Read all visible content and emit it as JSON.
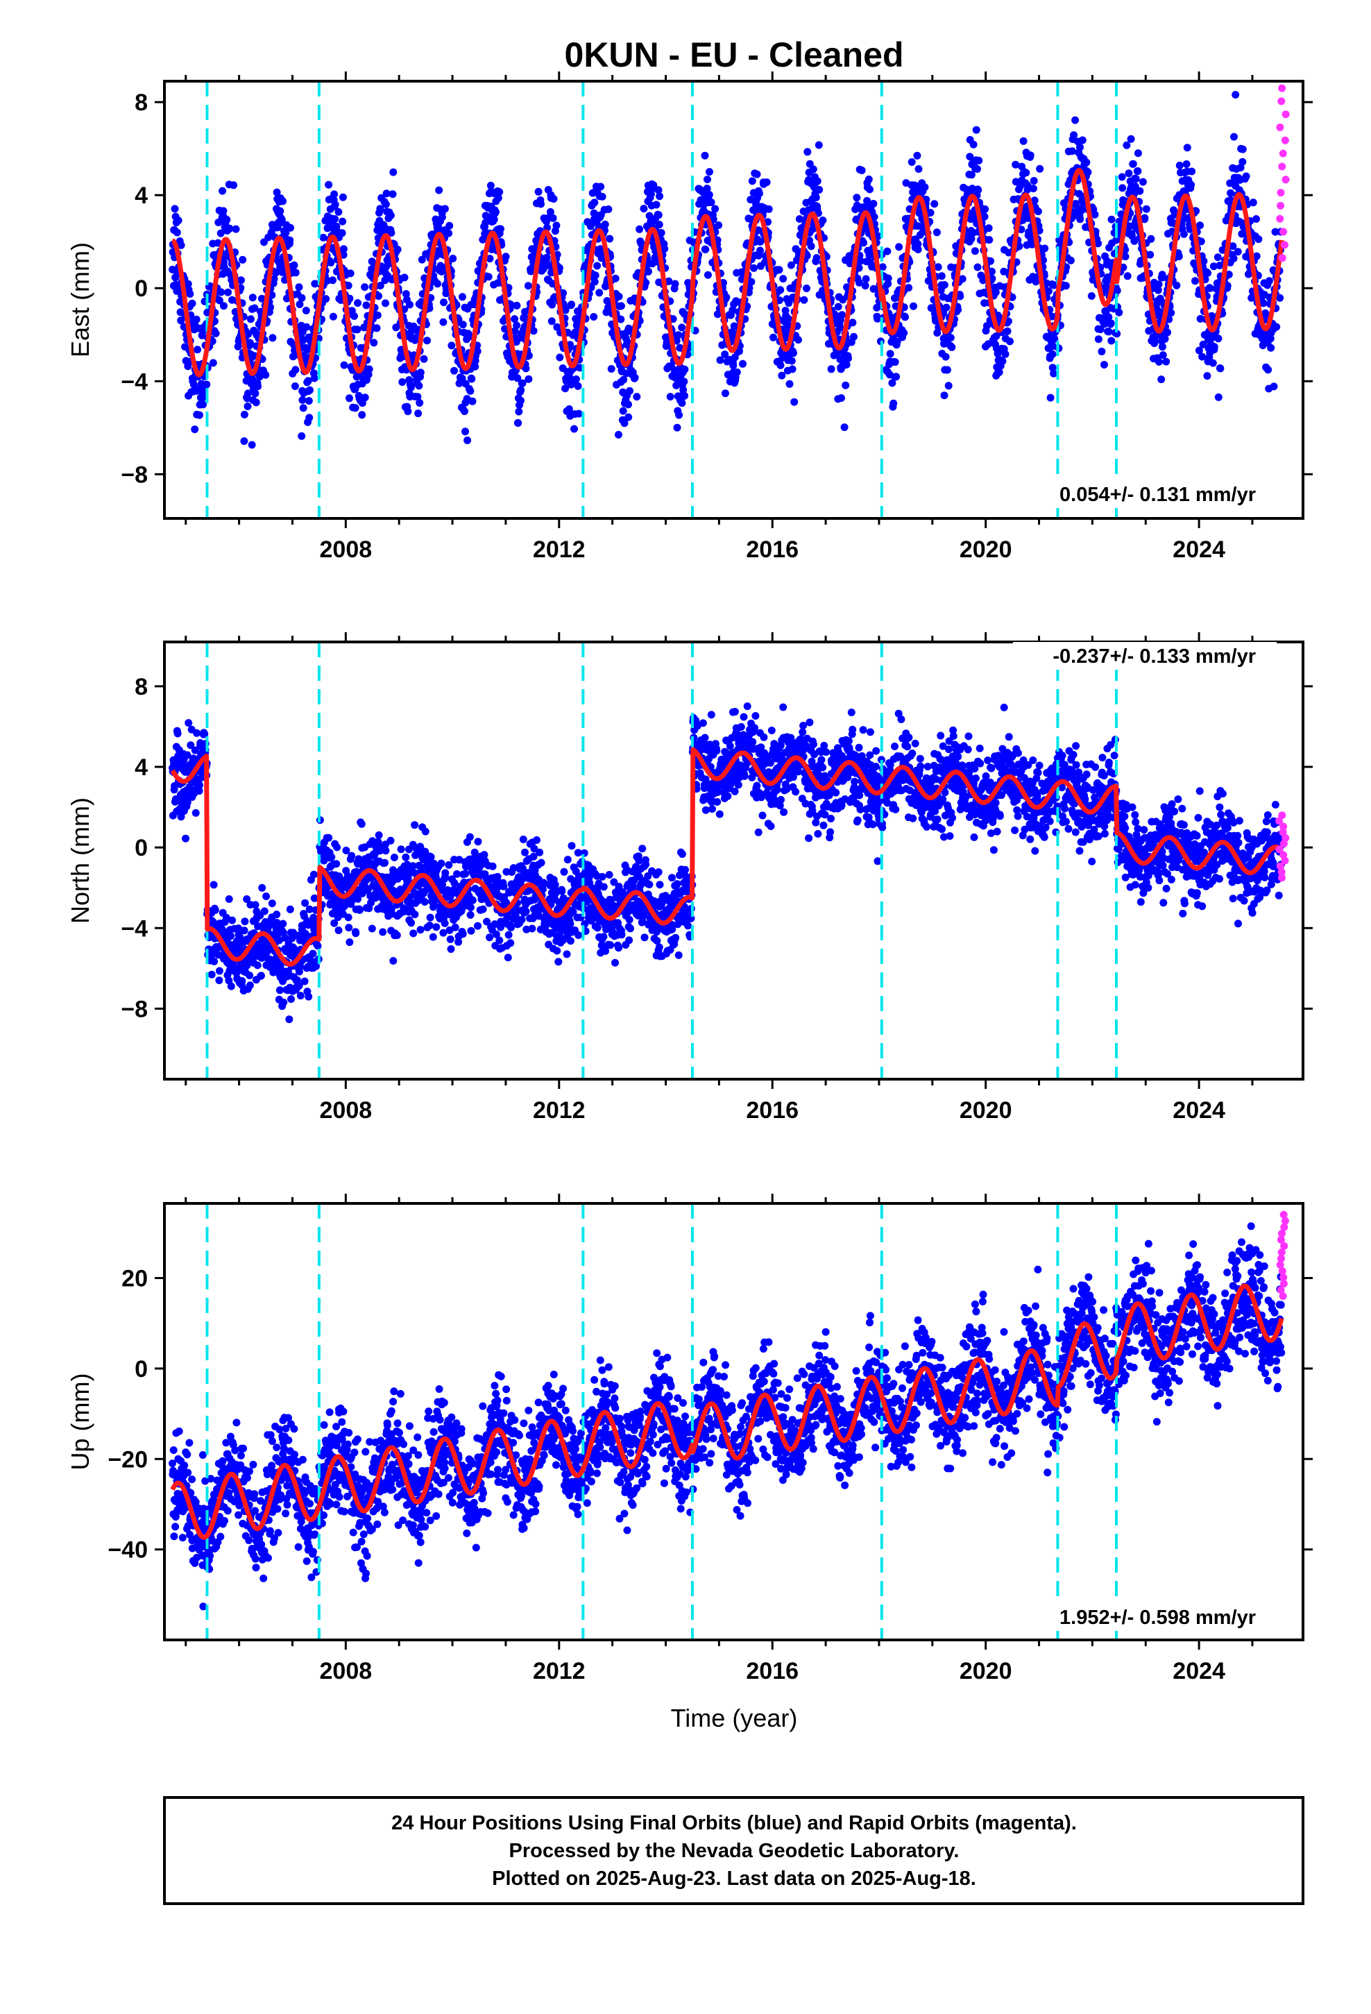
{
  "title": "0KUN  - EU - Cleaned",
  "xlabel": "Time (year)",
  "footer": [
    "24 Hour Positions Using Final Orbits (blue) and Rapid Orbits (magenta).",
    "Processed by the Nevada Geodetic Laboratory.",
    "Plotted on 2025-Aug-23. Last data on 2025-Aug-18."
  ],
  "colors": {
    "final_orbits": "#0000ff",
    "rapid_orbits": "#ff33ff",
    "model": "#ff1a1a",
    "events": "#00e5ee"
  },
  "chart_data": [
    {
      "type": "scatter",
      "name": "east",
      "ylabel": "East (mm)",
      "rate_label": "0.054+/- 0.131 mm/yr",
      "xlim": [
        2004.6,
        2025.95
      ],
      "ylim": [
        -9.9,
        8.9
      ],
      "xticks": [
        2008,
        2012,
        2016,
        2020,
        2024
      ],
      "yticks": [
        8,
        4,
        0,
        -4,
        -8
      ],
      "xtick_labels": [
        "2008",
        "2012",
        "2016",
        "2020",
        "2024"
      ],
      "ytick_labels": [
        "8",
        "4",
        "0",
        "−4",
        "−8"
      ],
      "event_lines": [
        2005.4,
        2007.5,
        2012.45,
        2014.5,
        2018.05,
        2021.35,
        2022.45
      ],
      "model": {
        "amp": 2.9,
        "phase_year": 0.5,
        "offset": [
          [
            2004.6,
            -0.3
          ],
          [
            2014.5,
            0.2
          ],
          [
            2018.05,
            0.8
          ],
          [
            2021.35,
            1.8
          ],
          [
            2022.45,
            0.6
          ]
        ],
        "rate": 0.054
      },
      "scatter": {
        "sigma": 1.2,
        "start": 2004.75,
        "end": 2025.55,
        "count": 3600
      },
      "rapid": {
        "x_start": 2025.5,
        "x_end": 2025.63,
        "y_min": 1.3,
        "y_max": 8.6,
        "count": 14
      }
    },
    {
      "type": "scatter",
      "name": "north",
      "ylabel": "North (mm)",
      "rate_label": "-0.237+/- 0.133 mm/yr",
      "xlim": [
        2004.6,
        2025.95
      ],
      "ylim": [
        -11.5,
        10.2
      ],
      "xticks": [
        2008,
        2012,
        2016,
        2020,
        2024
      ],
      "yticks": [
        8,
        4,
        0,
        -4,
        -8
      ],
      "xtick_labels": [
        "2008",
        "2012",
        "2016",
        "2020",
        "2024"
      ],
      "ytick_labels": [
        "8",
        "4",
        "0",
        "−4",
        "−8"
      ],
      "event_lines": [
        2005.4,
        2007.5,
        2012.45,
        2014.5,
        2018.05,
        2021.35,
        2022.45
      ],
      "model": {
        "amp": 0.7,
        "phase_year": 0.2,
        "offset": [
          [
            2004.6,
            1.6
          ],
          [
            2005.4,
            -7.0
          ],
          [
            2007.5,
            -3.4
          ],
          [
            2012.45,
            -3.3
          ],
          [
            2014.5,
            4.1
          ],
          [
            2022.45,
            1.8
          ]
        ],
        "rate": -0.237
      },
      "scatter": {
        "sigma": 1.0,
        "start": 2004.75,
        "end": 2025.55,
        "count": 3600
      },
      "rapid": {
        "x_start": 2025.5,
        "x_end": 2025.63,
        "y_min": -1.5,
        "y_max": 1.6,
        "count": 12
      }
    },
    {
      "type": "scatter",
      "name": "up",
      "ylabel": "Up (mm)",
      "rate_label": "1.952+/- 0.598 mm/yr",
      "xlim": [
        2004.6,
        2025.95
      ],
      "ylim": [
        -60,
        36.5
      ],
      "xticks": [
        2008,
        2012,
        2016,
        2020,
        2024
      ],
      "yticks": [
        20,
        0,
        -20,
        -40
      ],
      "xtick_labels": [
        "2008",
        "2012",
        "2016",
        "2020",
        "2024"
      ],
      "ytick_labels": [
        "20",
        "0",
        "−20",
        "−40"
      ],
      "event_lines": [
        2005.4,
        2007.5,
        2012.45,
        2014.5,
        2018.05,
        2021.35,
        2022.45
      ],
      "model": {
        "amp": 6.5,
        "phase_year": 0.6,
        "offset": [
          [
            2004.6,
            -12.0
          ],
          [
            2014.5,
            -14.0
          ],
          [
            2021.35,
            -10.0
          ],
          [
            2022.45,
            -7.5
          ]
        ],
        "rate": 1.952
      },
      "scatter": {
        "sigma": 5.5,
        "start": 2004.75,
        "end": 2025.55,
        "count": 3600
      },
      "rapid": {
        "x_start": 2025.5,
        "x_end": 2025.63,
        "y_min": 16,
        "y_max": 34,
        "count": 14
      }
    }
  ]
}
